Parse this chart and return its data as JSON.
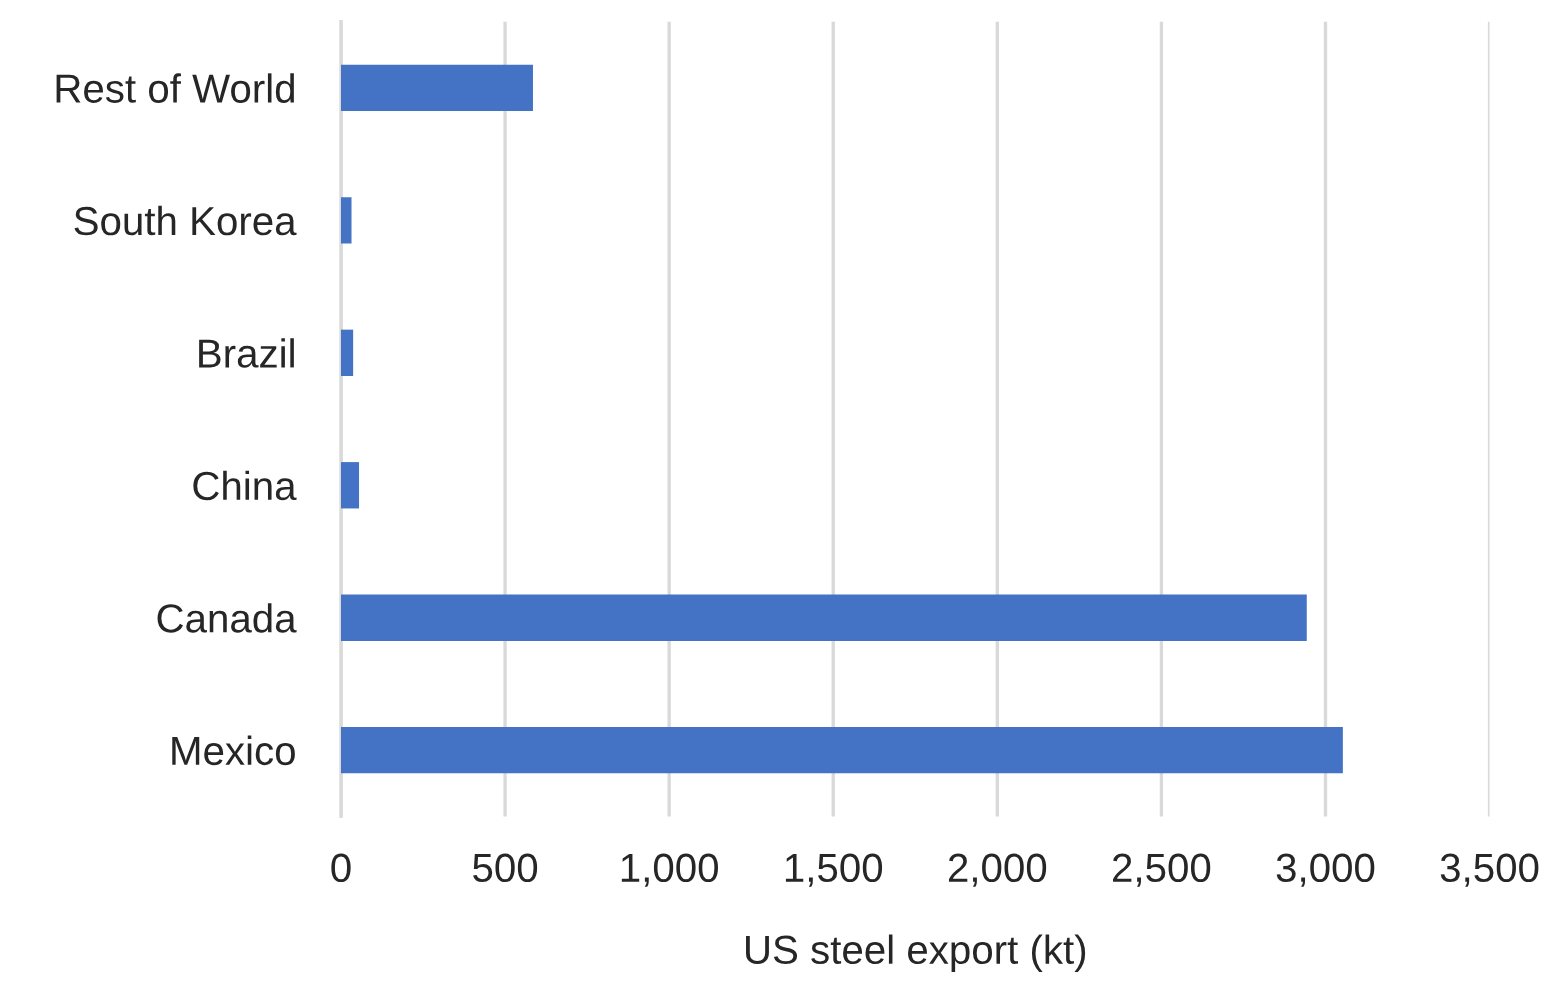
{
  "chart_data": {
    "type": "bar",
    "orientation": "horizontal",
    "categories": [
      "Rest of World",
      "South Korea",
      "Brazil",
      "China",
      "Canada",
      "Mexico"
    ],
    "values": [
      585,
      32,
      37,
      55,
      2943,
      3053
    ],
    "color": "#4472c4",
    "xlabel": "US steel export (kt)",
    "xlim": [
      0,
      3500
    ],
    "xticks": [
      0,
      500,
      {
        "value": 1000,
        "label": "1,000"
      },
      {
        "value": 1500,
        "label": "1,500"
      },
      {
        "value": 2000,
        "label": "2,000"
      },
      {
        "value": 2500,
        "label": "2,500"
      },
      {
        "value": 3000,
        "label": "3,000"
      },
      {
        "value": 3500,
        "label": "3,500"
      }
    ],
    "grid": "x"
  }
}
